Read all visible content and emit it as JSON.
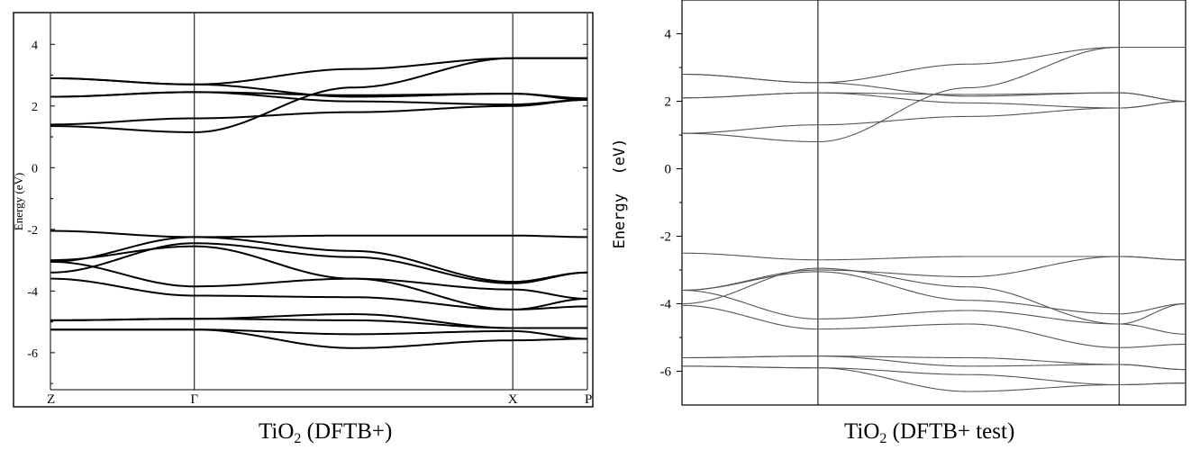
{
  "chart_data": [
    {
      "type": "line",
      "title": "TiO",
      "title_subscript": "2",
      "title_suffix": " (DFTB+)",
      "ylabel": "Energy (eV)",
      "xlabel": "",
      "ylim": [
        -7.2,
        5.0
      ],
      "xlim": [
        0,
        1
      ],
      "yticks": [
        4,
        2,
        0,
        -2,
        -4,
        -6
      ],
      "ytick_labels": [
        "4",
        "2",
        "0",
        "-2",
        "-4",
        "-6"
      ],
      "kpoints": [
        {
          "label": "Z",
          "x": 0.0
        },
        {
          "label": "Γ",
          "x": 0.268
        },
        {
          "label": "X",
          "x": 0.861
        },
        {
          "label": "P",
          "x": 1.0
        }
      ],
      "grid": false,
      "line_color": "#000000",
      "x": [
        0.0,
        0.268,
        0.564,
        0.861,
        1.0
      ],
      "series": [
        {
          "values": [
            1.35,
            1.15,
            2.6,
            3.55,
            3.55
          ]
        },
        {
          "values": [
            1.4,
            1.6,
            1.8,
            2.0,
            2.2
          ]
        },
        {
          "values": [
            2.3,
            2.45,
            2.15,
            2.05,
            2.2
          ]
        },
        {
          "values": [
            2.3,
            2.45,
            2.35,
            2.4,
            2.2
          ]
        },
        {
          "values": [
            2.9,
            2.7,
            2.3,
            2.4,
            2.25
          ]
        },
        {
          "values": [
            2.9,
            2.7,
            3.2,
            3.55,
            3.55
          ]
        },
        {
          "values": [
            -2.05,
            -2.25,
            -2.2,
            -2.2,
            -2.25
          ]
        },
        {
          "values": [
            -3.05,
            -2.25,
            -2.7,
            -3.7,
            -3.4
          ]
        },
        {
          "values": [
            -3.4,
            -2.45,
            -2.9,
            -3.75,
            -3.4
          ]
        },
        {
          "values": [
            -3.0,
            -2.55,
            -3.6,
            -4.6,
            -4.25
          ]
        },
        {
          "values": [
            -3.05,
            -3.85,
            -3.6,
            -3.95,
            -4.25
          ]
        },
        {
          "values": [
            -3.6,
            -4.15,
            -4.2,
            -4.6,
            -4.5
          ]
        },
        {
          "values": [
            -4.95,
            -4.9,
            -4.95,
            -5.2,
            -5.2
          ]
        },
        {
          "values": [
            -4.95,
            -4.9,
            -4.75,
            -5.2,
            -5.2
          ]
        },
        {
          "values": [
            -5.25,
            -5.25,
            -5.4,
            -5.3,
            -5.55
          ]
        },
        {
          "values": [
            -5.25,
            -5.25,
            -5.85,
            -5.6,
            -5.55
          ]
        }
      ]
    },
    {
      "type": "line",
      "title": "TiO",
      "title_subscript": "2",
      "title_suffix": " (DFTB+ test)",
      "ylabel": "Energy  (eV)",
      "xlabel": "",
      "ylim": [
        -7.0,
        5.0
      ],
      "xlim": [
        0,
        1
      ],
      "yticks": [
        4,
        2,
        0,
        -2,
        -4,
        -6
      ],
      "ytick_labels": [
        "4",
        "2",
        "0",
        "-2",
        "-4",
        "-6"
      ],
      "kpoints": [
        {
          "label": "",
          "x": 0.0
        },
        {
          "label": "",
          "x": 0.27
        },
        {
          "label": "",
          "x": 0.868
        },
        {
          "label": "",
          "x": 1.0
        }
      ],
      "grid": false,
      "line_color": "#555555",
      "x": [
        0.0,
        0.27,
        0.569,
        0.868,
        1.0
      ],
      "series": [
        {
          "values": [
            1.05,
            0.8,
            2.4,
            3.6,
            3.6
          ]
        },
        {
          "values": [
            1.05,
            1.3,
            1.55,
            1.8,
            2.0
          ]
        },
        {
          "values": [
            2.1,
            2.25,
            1.95,
            1.8,
            2.0
          ]
        },
        {
          "values": [
            2.1,
            2.25,
            2.2,
            2.25,
            2.0
          ]
        },
        {
          "values": [
            2.8,
            2.55,
            2.15,
            2.25,
            2.0
          ]
        },
        {
          "values": [
            2.8,
            2.55,
            3.1,
            3.6,
            3.6
          ]
        },
        {
          "values": [
            -2.5,
            -2.7,
            -2.6,
            -2.6,
            -2.7
          ]
        },
        {
          "values": [
            -3.6,
            -3.0,
            -3.2,
            -2.6,
            -2.7
          ]
        },
        {
          "values": [
            -3.6,
            -3.05,
            -3.9,
            -4.3,
            -4.0
          ]
        },
        {
          "values": [
            -4.0,
            -2.95,
            -3.5,
            -4.6,
            -4.0
          ]
        },
        {
          "values": [
            -3.6,
            -4.45,
            -4.2,
            -4.6,
            -4.9
          ]
        },
        {
          "values": [
            -4.05,
            -4.75,
            -4.6,
            -5.3,
            -5.2
          ]
        },
        {
          "values": [
            -5.6,
            -5.55,
            -5.6,
            -5.8,
            -5.95
          ]
        },
        {
          "values": [
            -5.6,
            -5.55,
            -5.85,
            -5.8,
            -5.95
          ]
        },
        {
          "values": [
            -5.85,
            -5.9,
            -6.1,
            -6.4,
            -6.35
          ]
        },
        {
          "values": [
            -5.85,
            -5.9,
            -6.6,
            -6.4,
            -6.35
          ]
        }
      ]
    }
  ]
}
